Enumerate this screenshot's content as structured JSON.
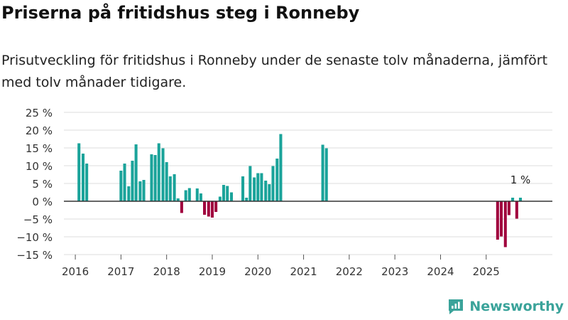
{
  "header": {
    "title": "Priserna på fritidshus steg i Ronneby",
    "subtitle": "Prisutveckling för fritidshus i Ronneby under de senaste tolv månaderna, jämfört med tolv månader tidigare."
  },
  "brand": {
    "name": "Newsworthy"
  },
  "colors": {
    "positive": "#1aa39a",
    "negative": "#a0003d",
    "grid": "#dddddd",
    "zero": "#333333",
    "brand": "#3aa39a"
  },
  "chart_data": {
    "type": "bar",
    "title": "Priserna på fritidshus steg i Ronneby",
    "xlabel": "",
    "ylabel": "",
    "ylim": [
      -15,
      25
    ],
    "yticks": [
      25,
      20,
      15,
      10,
      5,
      0,
      -5,
      -10,
      -15
    ],
    "ytick_labels": [
      "25 %",
      "20 %",
      "15 %",
      "10 %",
      "5 %",
      "0 %",
      "−5 %",
      "−10 %",
      "−15 %"
    ],
    "xticks": [
      2016,
      2017,
      2018,
      2019,
      2020,
      2021,
      2022,
      2023,
      2024,
      2025
    ],
    "annotation": {
      "label": "1 %",
      "t": 2025.75,
      "value": 1
    },
    "series": [
      {
        "name": "Prisutveckling",
        "points": [
          {
            "t": 2016.08,
            "v": 16.3
          },
          {
            "t": 2016.17,
            "v": 13.4
          },
          {
            "t": 2016.25,
            "v": 10.6
          },
          {
            "t": 2017.0,
            "v": 8.6
          },
          {
            "t": 2017.08,
            "v": 10.6
          },
          {
            "t": 2017.17,
            "v": 4.2
          },
          {
            "t": 2017.25,
            "v": 11.4
          },
          {
            "t": 2017.33,
            "v": 16.0
          },
          {
            "t": 2017.42,
            "v": 5.6
          },
          {
            "t": 2017.5,
            "v": 6.0
          },
          {
            "t": 2017.67,
            "v": 13.2
          },
          {
            "t": 2017.75,
            "v": 13.0
          },
          {
            "t": 2017.83,
            "v": 16.3
          },
          {
            "t": 2017.92,
            "v": 14.9
          },
          {
            "t": 2018.0,
            "v": 11.0
          },
          {
            "t": 2018.08,
            "v": 7.0
          },
          {
            "t": 2018.17,
            "v": 7.6
          },
          {
            "t": 2018.25,
            "v": 0.8
          },
          {
            "t": 2018.33,
            "v": -3.3
          },
          {
            "t": 2018.42,
            "v": 3.1
          },
          {
            "t": 2018.5,
            "v": 3.7
          },
          {
            "t": 2018.67,
            "v": 3.6
          },
          {
            "t": 2018.75,
            "v": 2.2
          },
          {
            "t": 2018.83,
            "v": -3.8
          },
          {
            "t": 2018.92,
            "v": -4.3
          },
          {
            "t": 2019.0,
            "v": -4.6
          },
          {
            "t": 2019.08,
            "v": -3.0
          },
          {
            "t": 2019.17,
            "v": 1.3
          },
          {
            "t": 2019.25,
            "v": 4.6
          },
          {
            "t": 2019.33,
            "v": 4.3
          },
          {
            "t": 2019.42,
            "v": 2.5
          },
          {
            "t": 2019.67,
            "v": 7.0
          },
          {
            "t": 2019.75,
            "v": 1.0
          },
          {
            "t": 2019.83,
            "v": 9.9
          },
          {
            "t": 2019.92,
            "v": 6.7
          },
          {
            "t": 2020.0,
            "v": 7.9
          },
          {
            "t": 2020.08,
            "v": 7.9
          },
          {
            "t": 2020.17,
            "v": 5.8
          },
          {
            "t": 2020.25,
            "v": 4.8
          },
          {
            "t": 2020.33,
            "v": 9.9
          },
          {
            "t": 2020.42,
            "v": 12.0
          },
          {
            "t": 2020.5,
            "v": 18.9
          },
          {
            "t": 2021.42,
            "v": 15.9
          },
          {
            "t": 2021.5,
            "v": 14.9
          },
          {
            "t": 2025.25,
            "v": -10.8
          },
          {
            "t": 2025.33,
            "v": -9.9
          },
          {
            "t": 2025.42,
            "v": -12.9
          },
          {
            "t": 2025.5,
            "v": -3.9
          },
          {
            "t": 2025.58,
            "v": 1.0
          },
          {
            "t": 2025.67,
            "v": -4.9
          },
          {
            "t": 2025.75,
            "v": 1.0
          }
        ]
      }
    ]
  }
}
